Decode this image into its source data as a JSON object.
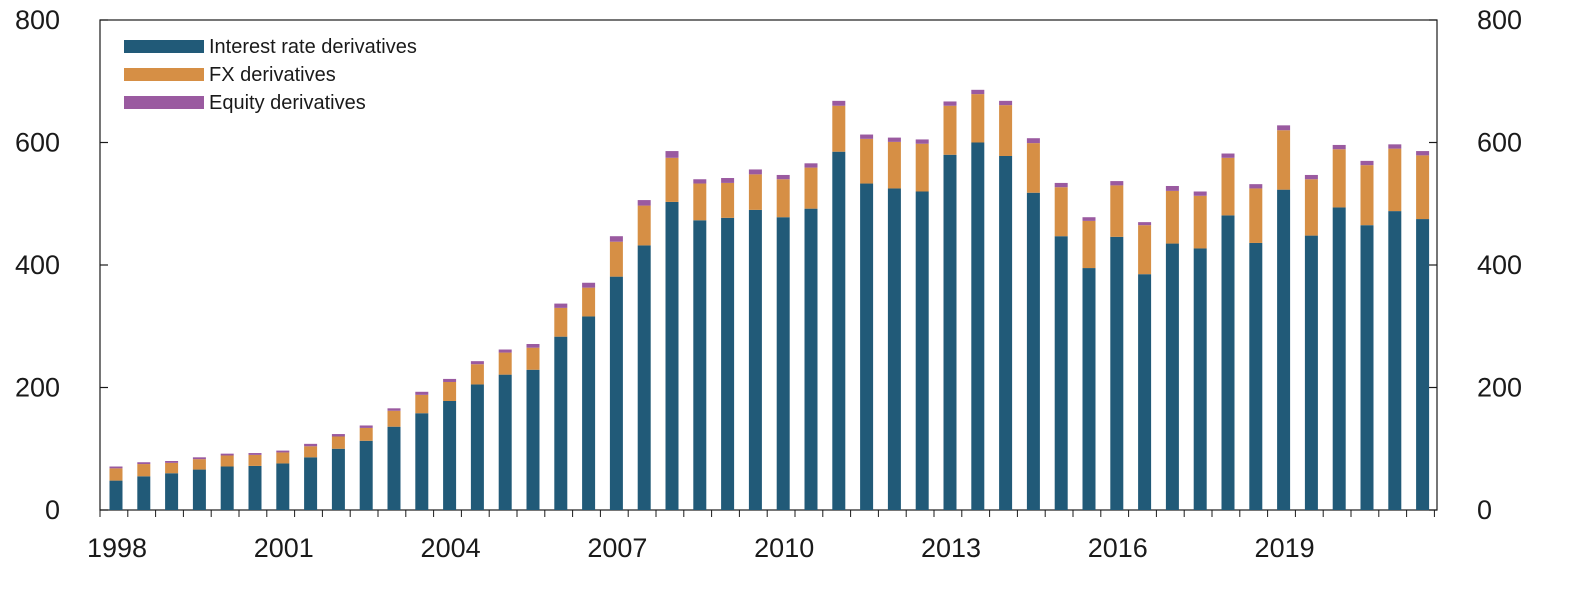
{
  "chart_data": {
    "type": "bar",
    "stacked": true,
    "legend_placement": "top-left",
    "grid": false,
    "ylim": [
      0,
      800
    ],
    "y_ticks": [
      "0",
      "200",
      "400",
      "600",
      "800"
    ],
    "x_tick_labels": [
      "1998",
      "2001",
      "2004",
      "2007",
      "2010",
      "2013",
      "2016",
      "2019"
    ],
    "categories": [
      "1998-H1",
      "1998-H2",
      "1999-H1",
      "1999-H2",
      "2000-H1",
      "2000-H2",
      "2001-H1",
      "2001-H2",
      "2002-H1",
      "2002-H2",
      "2003-H1",
      "2003-H2",
      "2004-H1",
      "2004-H2",
      "2005-H1",
      "2005-H2",
      "2006-H1",
      "2006-H2",
      "2007-H1",
      "2007-H2",
      "2008-H1",
      "2008-H2",
      "2009-H1",
      "2009-H2",
      "2010-H1",
      "2010-H2",
      "2011-H1",
      "2011-H2",
      "2012-H1",
      "2012-H2",
      "2013-H1",
      "2013-H2",
      "2014-H1",
      "2014-H2",
      "2015-H1",
      "2015-H2",
      "2016-H1",
      "2016-H2",
      "2017-H1",
      "2017-H2",
      "2018-H1",
      "2018-H2",
      "2019-H1",
      "2019-H2",
      "2020-H1",
      "2020-H2",
      "2021-H1",
      "2021-H2"
    ],
    "series": [
      {
        "name": "Interest rate derivatives",
        "color": "#215a78",
        "values": [
          48,
          55,
          60,
          66,
          71,
          72,
          76,
          86,
          100,
          113,
          136,
          158,
          178,
          205,
          221,
          229,
          283,
          316,
          381,
          432,
          503,
          473,
          477,
          490,
          478,
          492,
          585,
          533,
          525,
          520,
          580,
          600,
          578,
          518,
          447,
          395,
          446,
          385,
          435,
          427,
          481,
          436,
          523,
          448,
          494,
          465,
          488,
          475
        ]
      },
      {
        "name": "FX derivatives",
        "color": "#d68f45",
        "values": [
          20,
          20,
          17,
          17,
          18,
          18,
          18,
          18,
          20,
          21,
          26,
          30,
          31,
          33,
          36,
          36,
          47,
          47,
          57,
          65,
          72,
          60,
          57,
          58,
          62,
          67,
          75,
          73,
          76,
          78,
          80,
          79,
          83,
          81,
          80,
          77,
          84,
          80,
          86,
          86,
          94,
          89,
          97,
          92,
          95,
          98,
          102,
          104
        ]
      },
      {
        "name": "Equity derivatives",
        "color": "#9a5aa0",
        "values": [
          3,
          3,
          3,
          3,
          3,
          3,
          3,
          4,
          4,
          4,
          4,
          5,
          5,
          5,
          5,
          6,
          7,
          8,
          9,
          9,
          11,
          7,
          8,
          8,
          7,
          7,
          8,
          7,
          7,
          7,
          7,
          7,
          7,
          8,
          7,
          6,
          7,
          5,
          8,
          7,
          7,
          7,
          8,
          7,
          7,
          7,
          7,
          7
        ]
      }
    ]
  }
}
